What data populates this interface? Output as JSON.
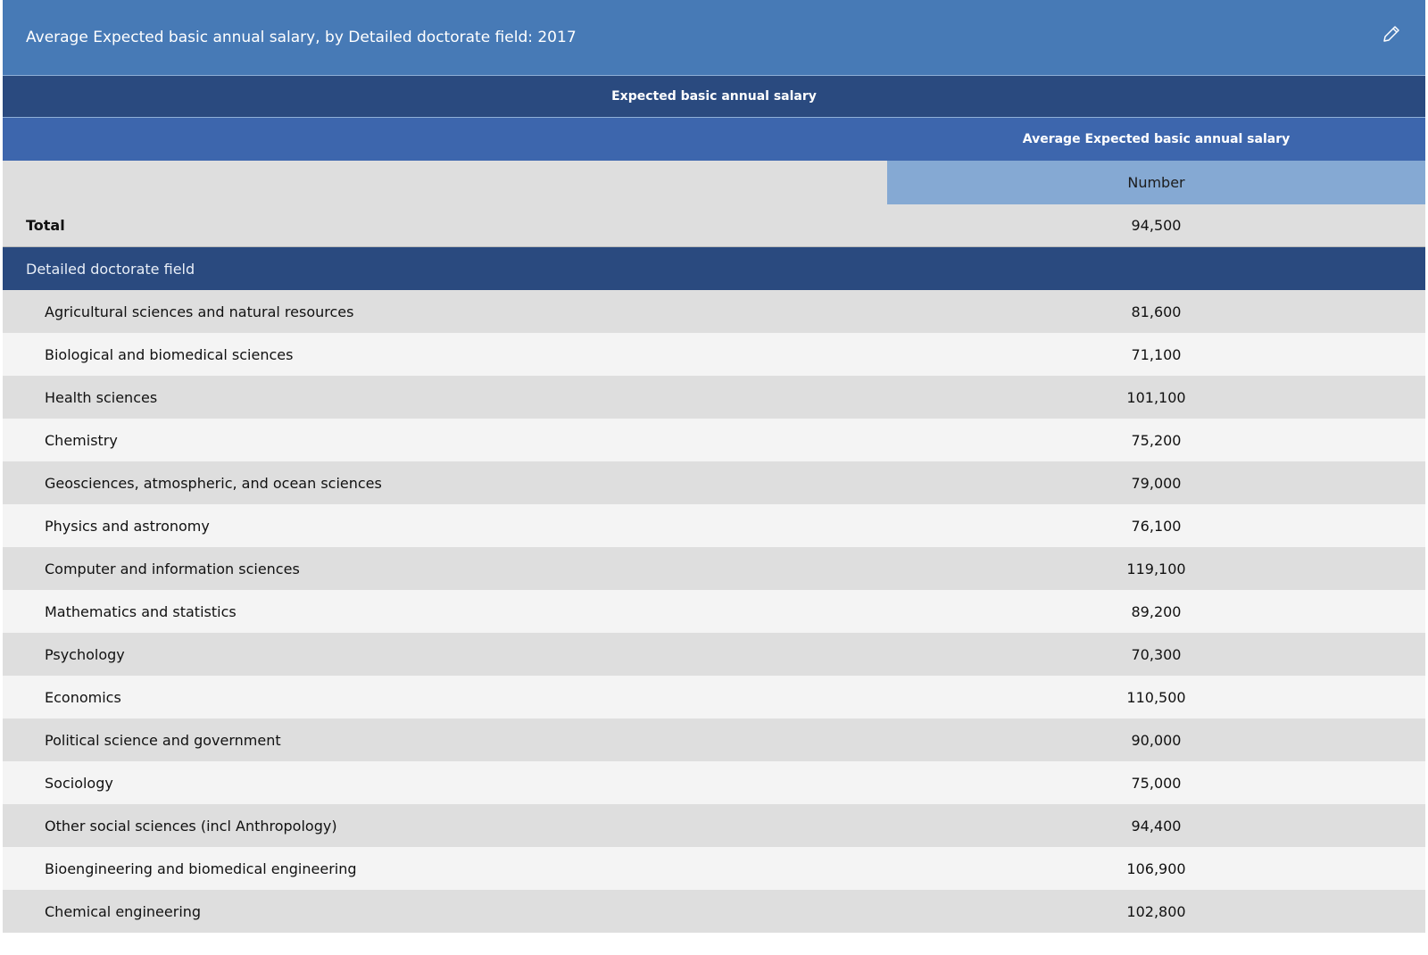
{
  "title": "Average Expected basic annual salary, by Detailed doctorate field: 2017",
  "edit_icon": "pencil-icon",
  "header": {
    "group_label": "Expected basic annual salary",
    "measure_label": "Average Expected basic annual salary",
    "unit_label": "Number"
  },
  "total": {
    "label": "Total",
    "value": "94,500"
  },
  "section_label": "Detailed doctorate field",
  "rows": [
    {
      "label": "Agricultural sciences and natural resources",
      "value": "81,600"
    },
    {
      "label": "Biological and biomedical sciences",
      "value": "71,100"
    },
    {
      "label": "Health sciences",
      "value": "101,100"
    },
    {
      "label": "Chemistry",
      "value": "75,200"
    },
    {
      "label": "Geosciences, atmospheric, and ocean sciences",
      "value": "79,000"
    },
    {
      "label": "Physics and astronomy",
      "value": "76,100"
    },
    {
      "label": "Computer and information sciences",
      "value": "119,100"
    },
    {
      "label": "Mathematics and statistics",
      "value": "89,200"
    },
    {
      "label": "Psychology",
      "value": "70,300"
    },
    {
      "label": "Economics",
      "value": "110,500"
    },
    {
      "label": "Political science and government",
      "value": "90,000"
    },
    {
      "label": "Sociology",
      "value": "75,000"
    },
    {
      "label": "Other social sciences (incl Anthropology)",
      "value": "94,400"
    },
    {
      "label": "Bioengineering and biomedical engineering",
      "value": "106,900"
    },
    {
      "label": "Chemical engineering",
      "value": "102,800"
    }
  ],
  "colors": {
    "title_bg": "#477ab6",
    "dark_header_bg": "#2a4a7f",
    "mid_header_bg": "#3d66ad",
    "unit_header_bg": "#85a9d3",
    "row_odd": "#dedede",
    "row_even": "#f4f4f4"
  }
}
